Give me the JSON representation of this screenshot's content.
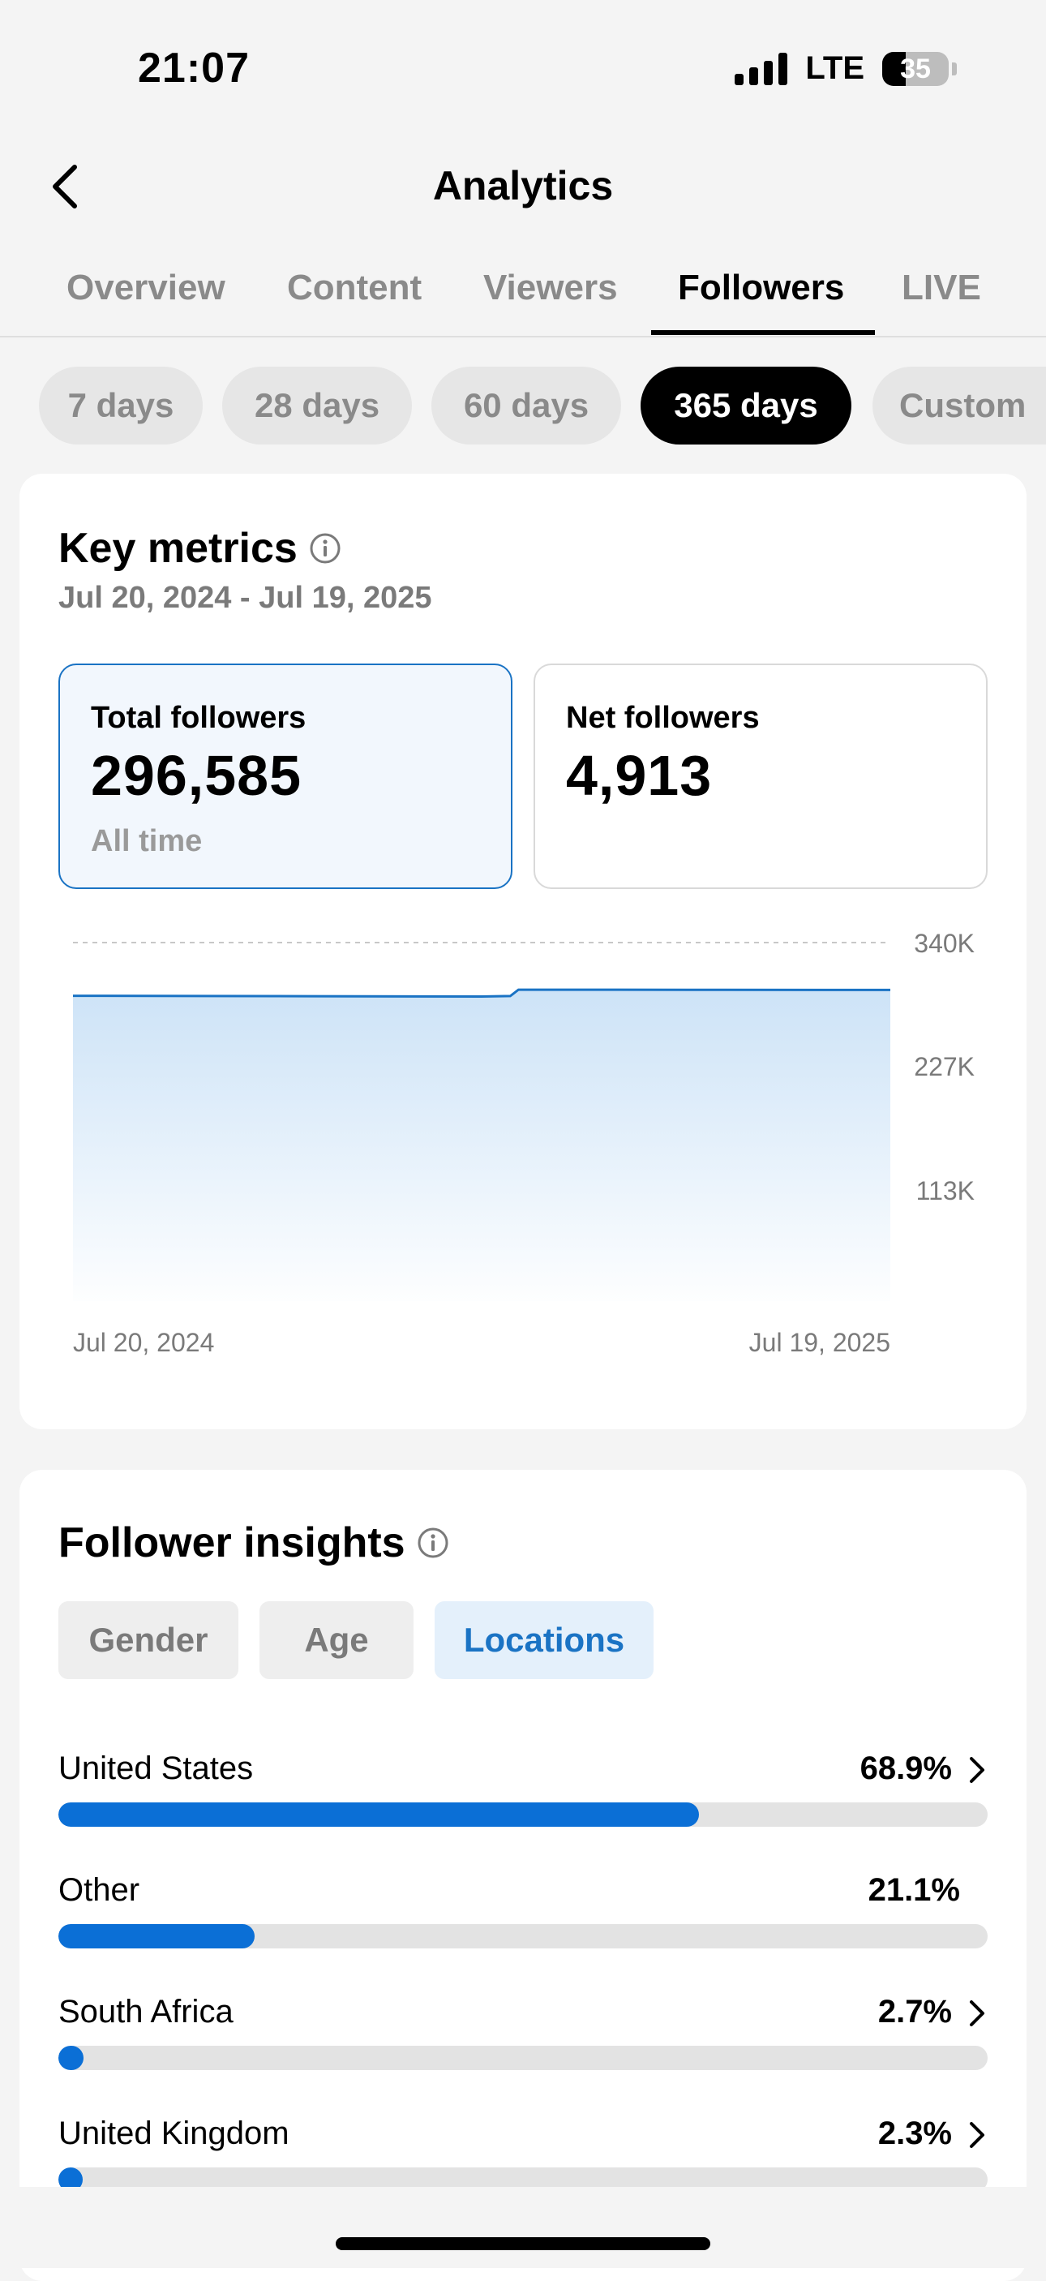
{
  "status_bar": {
    "time": "21:07",
    "network": "LTE",
    "battery": "35"
  },
  "nav": {
    "title": "Analytics",
    "back_icon": "chevron-left-icon"
  },
  "tabs": [
    {
      "label": "Overview",
      "active": false
    },
    {
      "label": "Content",
      "active": false
    },
    {
      "label": "Viewers",
      "active": false
    },
    {
      "label": "Followers",
      "active": true
    },
    {
      "label": "LIVE",
      "active": false
    }
  ],
  "periods": [
    {
      "label": "7 days",
      "active": false
    },
    {
      "label": "28 days",
      "active": false
    },
    {
      "label": "60 days",
      "active": false
    },
    {
      "label": "365 days",
      "active": true
    },
    {
      "label": "Custom",
      "active": false
    }
  ],
  "key_metrics": {
    "title": "Key metrics",
    "date_range": "Jul 20, 2024 - Jul 19, 2025",
    "total": {
      "label": "Total followers",
      "value": "296,585",
      "sub": "All time"
    },
    "net": {
      "label": "Net followers",
      "value": "4,913"
    }
  },
  "chart_data": {
    "type": "area",
    "title": "",
    "x_labels": [
      "Jul 20, 2024",
      "Jul 19, 2025"
    ],
    "y_ticks": [
      "340K",
      "227K",
      "113K"
    ],
    "ylim": [
      0,
      340000
    ],
    "x": [
      0,
      0.25,
      0.5,
      0.535,
      0.545,
      0.75,
      1.0
    ],
    "y": [
      291200,
      290900,
      290500,
      291000,
      296800,
      296700,
      296585
    ],
    "grid": true,
    "line_color": "#1a73c4",
    "fill_color": "#cde3f7"
  },
  "insights": {
    "title": "Follower insights",
    "segments": [
      {
        "label": "Gender",
        "active": false
      },
      {
        "label": "Age",
        "active": false
      },
      {
        "label": "Locations",
        "active": true
      }
    ],
    "locations": [
      {
        "name": "United States",
        "pct": "68.9%",
        "value": 68.9,
        "chevron": true
      },
      {
        "name": "Other",
        "pct": "21.1%",
        "value": 21.1,
        "chevron": false
      },
      {
        "name": "South Africa",
        "pct": "2.7%",
        "value": 2.7,
        "chevron": true
      },
      {
        "name": "United Kingdom",
        "pct": "2.3%",
        "value": 2.3,
        "chevron": true
      }
    ]
  }
}
